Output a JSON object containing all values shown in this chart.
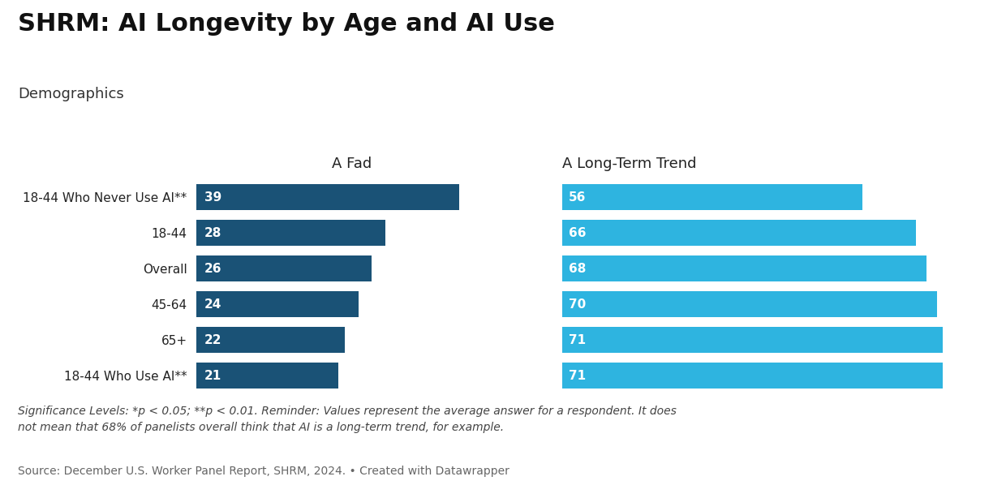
{
  "title": "SHRM: AI Longevity by Age and AI Use",
  "subtitle": "Demographics",
  "categories": [
    "18-44 Who Never Use AI**",
    "18-44",
    "Overall",
    "45-64",
    "65+",
    "18-44 Who Use AI**"
  ],
  "fad_values": [
    39,
    28,
    26,
    24,
    22,
    21
  ],
  "trend_values": [
    56,
    66,
    68,
    70,
    71,
    71
  ],
  "fad_label": "A Fad",
  "trend_label": "A Long-Term Trend",
  "fad_color": "#1a5276",
  "trend_color": "#2eb4e0",
  "label_color": "#ffffff",
  "background_color": "#ffffff",
  "footnote_italic": "Significance Levels: *p < 0.05; **p < 0.01. Reminder: Values represent the average answer for a respondent. It does\nnot mean that 68% of panelists overall think that AI is a long-term trend, for example.",
  "source": "Source: December U.S. Worker Panel Report, SHRM, 2024. • Created with Datawrapper",
  "title_fontsize": 22,
  "subtitle_fontsize": 13,
  "category_fontsize": 11,
  "bar_label_fontsize": 11,
  "column_label_fontsize": 13,
  "footnote_fontsize": 10,
  "source_fontsize": 10,
  "bar_height": 0.72,
  "fad_xlim": 46,
  "trend_xlim": 80
}
